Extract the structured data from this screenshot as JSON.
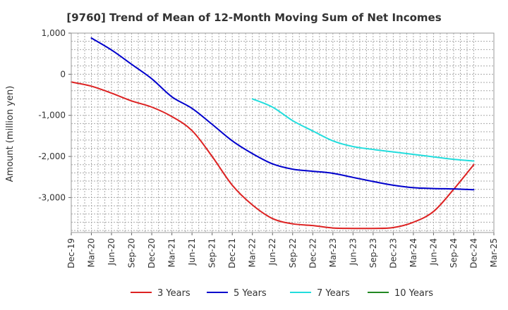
{
  "chart_data": {
    "type": "line",
    "title": "[9760]  Trend of Mean of 12-Month Moving Sum of Net Incomes",
    "ylabel": "Amount (million yen)",
    "xlabel": "",
    "ylim": [
      -3850,
      1000
    ],
    "yticks": [
      1000,
      0,
      -1000,
      -2000,
      -3000
    ],
    "ytick_labels": [
      "1,000",
      "0",
      "-1,000",
      "-2,000",
      "-3,000"
    ],
    "xticks": [
      "Dec-19",
      "Mar-20",
      "Jun-20",
      "Sep-20",
      "Dec-20",
      "Mar-21",
      "Jun-21",
      "Sep-21",
      "Dec-21",
      "Mar-22",
      "Jun-22",
      "Sep-22",
      "Dec-22",
      "Mar-23",
      "Jun-23",
      "Sep-23",
      "Dec-23",
      "Mar-24",
      "Jun-24",
      "Sep-24",
      "Dec-24",
      "Mar-25"
    ],
    "grid": true,
    "legend_position": "bottom",
    "series": [
      {
        "name": "3 Years",
        "color": "#dd2222",
        "x": [
          "Dec-19",
          "Mar-20",
          "Jun-20",
          "Sep-20",
          "Dec-20",
          "Mar-21",
          "Jun-21",
          "Sep-21",
          "Dec-21",
          "Mar-22",
          "Jun-22",
          "Sep-22",
          "Dec-22",
          "Mar-23",
          "Jun-23",
          "Sep-23",
          "Dec-23",
          "Mar-24",
          "Jun-24",
          "Sep-24",
          "Dec-24"
        ],
        "y": [
          -190,
          -290,
          -460,
          -650,
          -800,
          -1030,
          -1370,
          -2000,
          -2700,
          -3180,
          -3510,
          -3640,
          -3680,
          -3740,
          -3750,
          -3750,
          -3730,
          -3600,
          -3340,
          -2800,
          -2200
        ]
      },
      {
        "name": "5 Years",
        "color": "#0000cc",
        "x": [
          "Mar-20",
          "Jun-20",
          "Sep-20",
          "Dec-20",
          "Mar-21",
          "Jun-21",
          "Sep-21",
          "Dec-21",
          "Mar-22",
          "Jun-22",
          "Sep-22",
          "Dec-22",
          "Mar-23",
          "Jun-23",
          "Sep-23",
          "Dec-23",
          "Mar-24",
          "Jun-24",
          "Sep-24",
          "Dec-24"
        ],
        "y": [
          880,
          590,
          240,
          -110,
          -550,
          -830,
          -1220,
          -1620,
          -1930,
          -2180,
          -2310,
          -2360,
          -2410,
          -2510,
          -2610,
          -2700,
          -2760,
          -2780,
          -2790,
          -2810
        ]
      },
      {
        "name": "7 Years",
        "color": "#22dddd",
        "x": [
          "Dec-21",
          "Mar-22",
          "Jun-22",
          "Sep-22",
          "Dec-22",
          "Mar-23",
          "Jun-23",
          "Sep-23",
          "Dec-23",
          "Mar-24",
          "Jun-24",
          "Sep-24",
          "Dec-24"
        ],
        "y": [
          null,
          -600,
          -800,
          -1130,
          -1380,
          -1620,
          -1760,
          -1830,
          -1890,
          -1950,
          -2010,
          -2070,
          -2110
        ]
      },
      {
        "name": "10 Years",
        "color": "#228822",
        "x": [],
        "y": []
      }
    ]
  }
}
